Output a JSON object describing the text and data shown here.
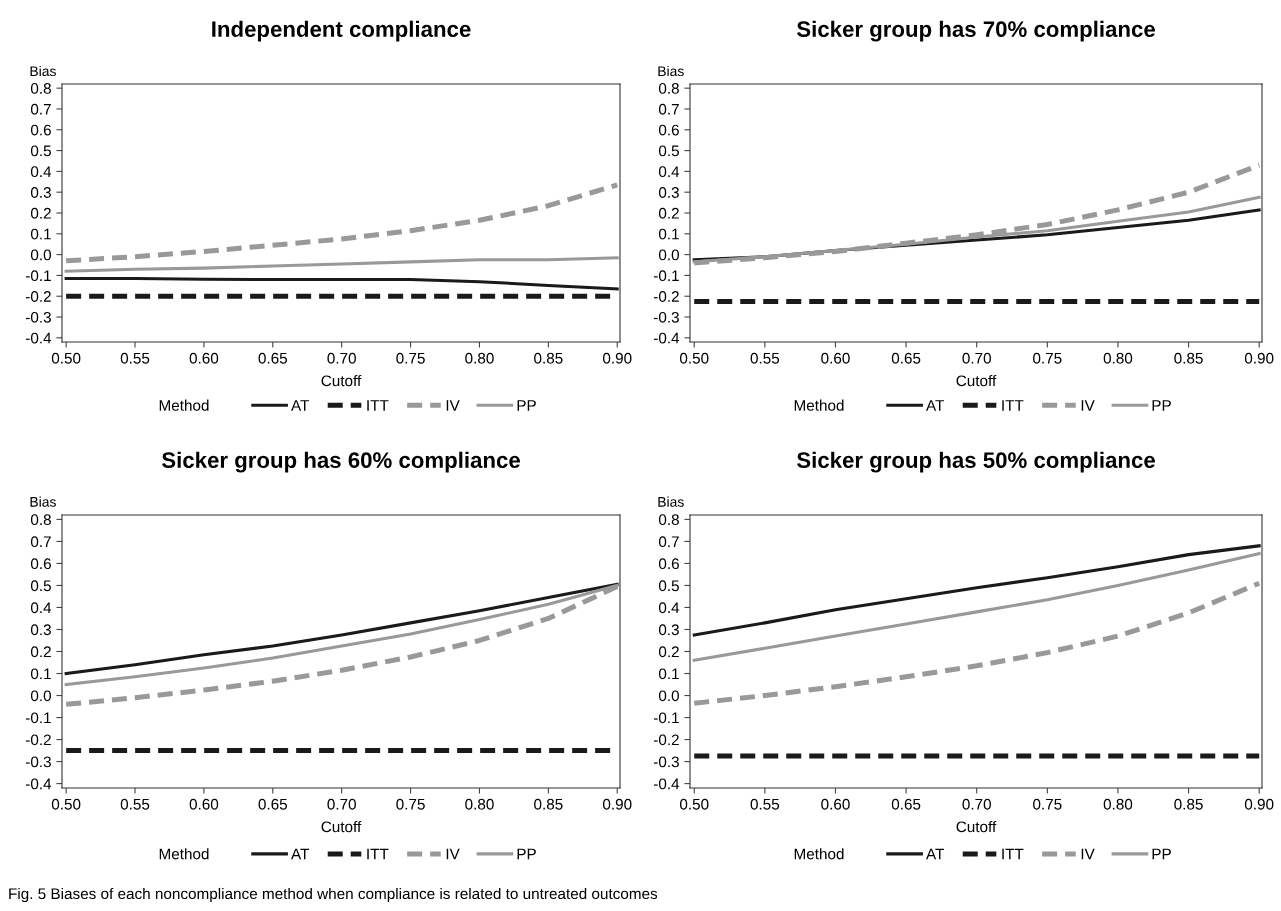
{
  "chart_data": [
    {
      "type": "line",
      "title": "Independent compliance",
      "xlabel": "Cutoff",
      "ylabel": "Bias",
      "legend_title": "Method",
      "legend": "bottom",
      "grid": false,
      "x": [
        0.5,
        0.55,
        0.6,
        0.65,
        0.7,
        0.75,
        0.8,
        0.85,
        0.9
      ],
      "xlim": [
        0.497,
        0.902
      ],
      "ylim": [
        -0.42,
        0.82
      ],
      "xticks": [
        {
          "value": 0.5,
          "label": "0.50"
        },
        {
          "value": 0.55,
          "label": "0.55"
        },
        {
          "value": 0.6,
          "label": "0.60"
        },
        {
          "value": 0.65,
          "label": "0.65"
        },
        {
          "value": 0.7,
          "label": "0.70"
        },
        {
          "value": 0.75,
          "label": "0.75"
        },
        {
          "value": 0.8,
          "label": "0.80"
        },
        {
          "value": 0.85,
          "label": "0.85"
        },
        {
          "value": 0.9,
          "label": "0.90"
        }
      ],
      "yticks": [
        {
          "value": -0.4,
          "label": "-0.4"
        },
        {
          "value": -0.3,
          "label": "-0.3"
        },
        {
          "value": -0.2,
          "label": "-0.2"
        },
        {
          "value": -0.1,
          "label": "-0.1"
        },
        {
          "value": 0,
          "label": "0.0"
        },
        {
          "value": 0.1,
          "label": "0.1"
        },
        {
          "value": 0.2,
          "label": "0.2"
        },
        {
          "value": 0.3,
          "label": "0.3"
        },
        {
          "value": 0.4,
          "label": "0.4"
        },
        {
          "value": 0.5,
          "label": "0.5"
        },
        {
          "value": 0.6,
          "label": "0.6"
        },
        {
          "value": 0.7,
          "label": "0.7"
        },
        {
          "value": 0.8,
          "label": "0.8"
        }
      ],
      "series": [
        {
          "name": "AT",
          "color": "#1a1a1a",
          "line_style": "solid",
          "values": [
            -0.115,
            -0.115,
            -0.118,
            -0.12,
            -0.12,
            -0.12,
            -0.13,
            -0.148,
            -0.165
          ]
        },
        {
          "name": "ITT",
          "color": "#1a1a1a",
          "line_style": "dashed",
          "values": [
            -0.2,
            -0.2,
            -0.2,
            -0.2,
            -0.2,
            -0.2,
            -0.2,
            -0.2,
            -0.2
          ]
        },
        {
          "name": "IV",
          "color": "#999999",
          "line_style": "dashed",
          "values": [
            -0.03,
            -0.01,
            0.015,
            0.045,
            0.075,
            0.115,
            0.165,
            0.235,
            0.335
          ]
        },
        {
          "name": "PP",
          "color": "#999999",
          "line_style": "solid",
          "values": [
            -0.08,
            -0.07,
            -0.065,
            -0.055,
            -0.045,
            -0.035,
            -0.025,
            -0.025,
            -0.015
          ]
        }
      ]
    },
    {
      "type": "line",
      "title": "Sicker group has 70% compliance",
      "xlabel": "Cutoff",
      "ylabel": "Bias",
      "legend_title": "Method",
      "legend": "bottom",
      "grid": false,
      "x": [
        0.5,
        0.55,
        0.6,
        0.65,
        0.7,
        0.75,
        0.8,
        0.85,
        0.9
      ],
      "xlim": [
        0.497,
        0.902
      ],
      "ylim": [
        -0.42,
        0.82
      ],
      "xticks": [
        {
          "value": 0.5,
          "label": "0.50"
        },
        {
          "value": 0.55,
          "label": "0.55"
        },
        {
          "value": 0.6,
          "label": "0.60"
        },
        {
          "value": 0.65,
          "label": "0.65"
        },
        {
          "value": 0.7,
          "label": "0.70"
        },
        {
          "value": 0.75,
          "label": "0.75"
        },
        {
          "value": 0.8,
          "label": "0.80"
        },
        {
          "value": 0.85,
          "label": "0.85"
        },
        {
          "value": 0.9,
          "label": "0.90"
        }
      ],
      "yticks": [
        {
          "value": -0.4,
          "label": "-0.4"
        },
        {
          "value": -0.3,
          "label": "-0.3"
        },
        {
          "value": -0.2,
          "label": "-0.2"
        },
        {
          "value": -0.1,
          "label": "-0.1"
        },
        {
          "value": 0,
          "label": "0.0"
        },
        {
          "value": 0.1,
          "label": "0.1"
        },
        {
          "value": 0.2,
          "label": "0.2"
        },
        {
          "value": 0.3,
          "label": "0.3"
        },
        {
          "value": 0.4,
          "label": "0.4"
        },
        {
          "value": 0.5,
          "label": "0.5"
        },
        {
          "value": 0.6,
          "label": "0.6"
        },
        {
          "value": 0.7,
          "label": "0.7"
        },
        {
          "value": 0.8,
          "label": "0.8"
        }
      ],
      "series": [
        {
          "name": "AT",
          "color": "#1a1a1a",
          "line_style": "solid",
          "values": [
            -0.025,
            -0.01,
            0.02,
            0.045,
            0.07,
            0.095,
            0.13,
            0.165,
            0.215
          ]
        },
        {
          "name": "ITT",
          "color": "#1a1a1a",
          "line_style": "dashed",
          "values": [
            -0.225,
            -0.225,
            -0.225,
            -0.225,
            -0.225,
            -0.225,
            -0.225,
            -0.225,
            -0.225
          ]
        },
        {
          "name": "IV",
          "color": "#999999",
          "line_style": "dashed",
          "values": [
            -0.04,
            -0.015,
            0.015,
            0.055,
            0.095,
            0.145,
            0.215,
            0.3,
            0.43
          ]
        },
        {
          "name": "PP",
          "color": "#999999",
          "line_style": "solid",
          "values": [
            -0.035,
            -0.01,
            0.02,
            0.05,
            0.085,
            0.115,
            0.16,
            0.205,
            0.275
          ]
        }
      ]
    },
    {
      "type": "line",
      "title": "Sicker group has 60% compliance",
      "xlabel": "Cutoff",
      "ylabel": "Bias",
      "legend_title": "Method",
      "legend": "bottom",
      "grid": false,
      "x": [
        0.5,
        0.55,
        0.6,
        0.65,
        0.7,
        0.75,
        0.8,
        0.85,
        0.9
      ],
      "xlim": [
        0.497,
        0.902
      ],
      "ylim": [
        -0.42,
        0.82
      ],
      "xticks": [
        {
          "value": 0.5,
          "label": "0.50"
        },
        {
          "value": 0.55,
          "label": "0.55"
        },
        {
          "value": 0.6,
          "label": "0.60"
        },
        {
          "value": 0.65,
          "label": "0.65"
        },
        {
          "value": 0.7,
          "label": "0.70"
        },
        {
          "value": 0.75,
          "label": "0.75"
        },
        {
          "value": 0.8,
          "label": "0.80"
        },
        {
          "value": 0.85,
          "label": "0.85"
        },
        {
          "value": 0.9,
          "label": "0.90"
        }
      ],
      "yticks": [
        {
          "value": -0.4,
          "label": "-0.4"
        },
        {
          "value": -0.3,
          "label": "-0.3"
        },
        {
          "value": -0.2,
          "label": "-0.2"
        },
        {
          "value": -0.1,
          "label": "-0.1"
        },
        {
          "value": 0,
          "label": "0.0"
        },
        {
          "value": 0.1,
          "label": "0.1"
        },
        {
          "value": 0.2,
          "label": "0.2"
        },
        {
          "value": 0.3,
          "label": "0.3"
        },
        {
          "value": 0.4,
          "label": "0.4"
        },
        {
          "value": 0.5,
          "label": "0.5"
        },
        {
          "value": 0.6,
          "label": "0.6"
        },
        {
          "value": 0.7,
          "label": "0.7"
        },
        {
          "value": 0.8,
          "label": "0.8"
        }
      ],
      "series": [
        {
          "name": "AT",
          "color": "#1a1a1a",
          "line_style": "solid",
          "values": [
            0.1,
            0.14,
            0.185,
            0.225,
            0.275,
            0.33,
            0.385,
            0.445,
            0.505
          ]
        },
        {
          "name": "ITT",
          "color": "#1a1a1a",
          "line_style": "dashed",
          "values": [
            -0.25,
            -0.25,
            -0.25,
            -0.25,
            -0.25,
            -0.25,
            -0.25,
            -0.25,
            -0.25
          ]
        },
        {
          "name": "IV",
          "color": "#999999",
          "line_style": "dashed",
          "values": [
            -0.04,
            -0.01,
            0.025,
            0.065,
            0.115,
            0.175,
            0.25,
            0.35,
            0.495
          ]
        },
        {
          "name": "PP",
          "color": "#999999",
          "line_style": "solid",
          "values": [
            0.05,
            0.085,
            0.125,
            0.17,
            0.225,
            0.28,
            0.345,
            0.415,
            0.5
          ]
        }
      ]
    },
    {
      "type": "line",
      "title": "Sicker group has 50% compliance",
      "xlabel": "Cutoff",
      "ylabel": "Bias",
      "legend_title": "Method",
      "legend": "bottom",
      "grid": false,
      "x": [
        0.5,
        0.55,
        0.6,
        0.65,
        0.7,
        0.75,
        0.8,
        0.85,
        0.9
      ],
      "xlim": [
        0.497,
        0.902
      ],
      "ylim": [
        -0.42,
        0.82
      ],
      "xticks": [
        {
          "value": 0.5,
          "label": "0.50"
        },
        {
          "value": 0.55,
          "label": "0.55"
        },
        {
          "value": 0.6,
          "label": "0.60"
        },
        {
          "value": 0.65,
          "label": "0.65"
        },
        {
          "value": 0.7,
          "label": "0.70"
        },
        {
          "value": 0.75,
          "label": "0.75"
        },
        {
          "value": 0.8,
          "label": "0.80"
        },
        {
          "value": 0.85,
          "label": "0.85"
        },
        {
          "value": 0.9,
          "label": "0.90"
        }
      ],
      "yticks": [
        {
          "value": -0.4,
          "label": "-0.4"
        },
        {
          "value": -0.3,
          "label": "-0.3"
        },
        {
          "value": -0.2,
          "label": "-0.2"
        },
        {
          "value": -0.1,
          "label": "-0.1"
        },
        {
          "value": 0,
          "label": "0.0"
        },
        {
          "value": 0.1,
          "label": "0.1"
        },
        {
          "value": 0.2,
          "label": "0.2"
        },
        {
          "value": 0.3,
          "label": "0.3"
        },
        {
          "value": 0.4,
          "label": "0.4"
        },
        {
          "value": 0.5,
          "label": "0.5"
        },
        {
          "value": 0.6,
          "label": "0.6"
        },
        {
          "value": 0.7,
          "label": "0.7"
        },
        {
          "value": 0.8,
          "label": "0.8"
        }
      ],
      "series": [
        {
          "name": "AT",
          "color": "#1a1a1a",
          "line_style": "solid",
          "values": [
            0.275,
            0.33,
            0.39,
            0.44,
            0.49,
            0.535,
            0.585,
            0.64,
            0.68
          ]
        },
        {
          "name": "ITT",
          "color": "#1a1a1a",
          "line_style": "dashed",
          "values": [
            -0.275,
            -0.275,
            -0.275,
            -0.275,
            -0.275,
            -0.275,
            -0.275,
            -0.275,
            -0.275
          ]
        },
        {
          "name": "IV",
          "color": "#999999",
          "line_style": "dashed",
          "values": [
            -0.035,
            0.0,
            0.04,
            0.085,
            0.135,
            0.195,
            0.27,
            0.375,
            0.51
          ]
        },
        {
          "name": "PP",
          "color": "#999999",
          "line_style": "solid",
          "values": [
            0.16,
            0.215,
            0.27,
            0.325,
            0.38,
            0.435,
            0.5,
            0.57,
            0.645
          ]
        }
      ],
      "annotations": [
        "Fig. 5 Biases of each noncompliance method when compliance is related to untreated outcomes"
      ]
    }
  ]
}
